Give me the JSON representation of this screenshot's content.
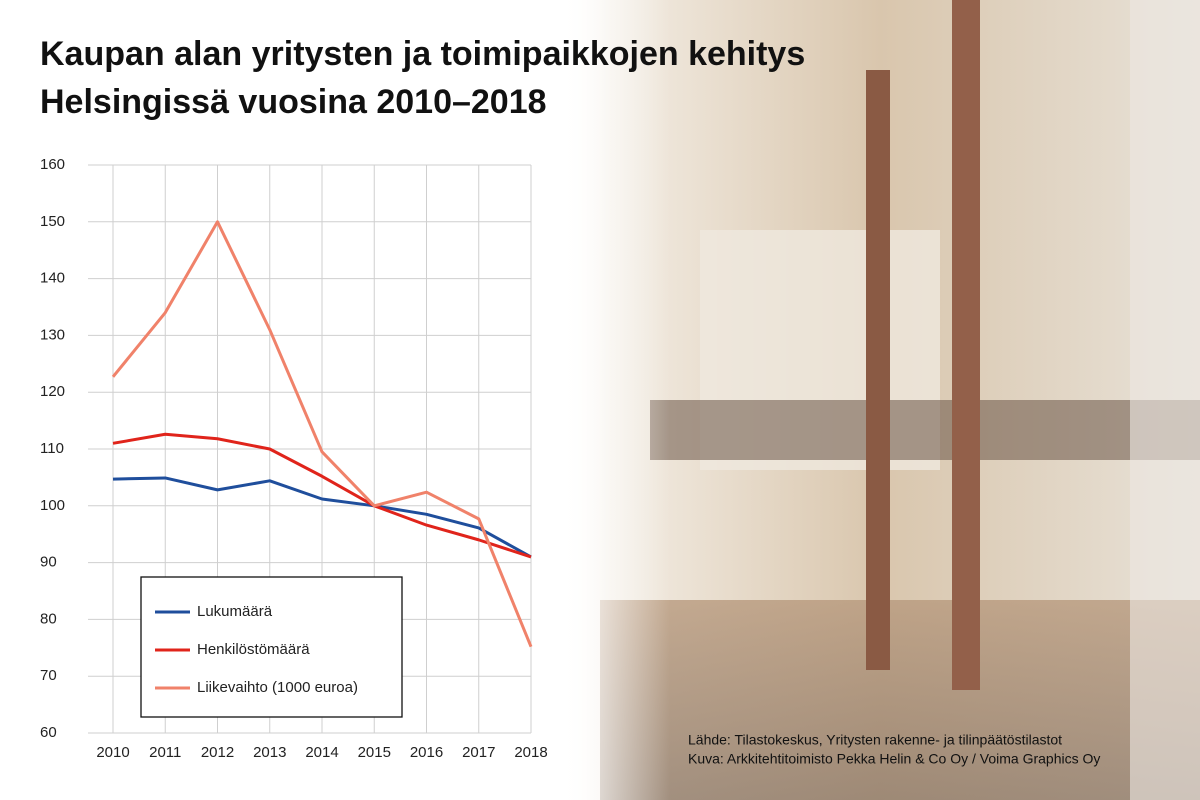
{
  "chart_data": {
    "type": "line",
    "title": [
      "Kaupan alan yritysten ja toimipaikkojen kehitys",
      "Helsingissä vuosina 2010–2018"
    ],
    "categories": [
      "2010",
      "2011",
      "2012",
      "2013",
      "2014",
      "2015",
      "2016",
      "2017",
      "2018"
    ],
    "series": [
      {
        "name": "Lukumäärä",
        "color": "#1f4e9c",
        "values": [
          104.7,
          104.9,
          102.8,
          104.4,
          101.2,
          100,
          98.5,
          96.1,
          91
        ]
      },
      {
        "name": "Henkilöstömäärä",
        "color": "#e0241b",
        "values": [
          111,
          112.6,
          111.8,
          110,
          105.2,
          100,
          96.6,
          94,
          91
        ]
      },
      {
        "name": "Liikevaihto (1000 euroa)",
        "color": "#f0826a",
        "values": [
          122.7,
          134,
          150,
          131,
          109.5,
          100,
          102.4,
          97.7,
          75.2
        ]
      }
    ],
    "ylim": [
      60,
      160
    ],
    "yticks": [
      60,
      70,
      80,
      90,
      100,
      110,
      120,
      130,
      140,
      150,
      160
    ],
    "grid": true,
    "legend": "lower left",
    "source": [
      "Lähde: Tilastokeskus, Yritysten rakenne- ja tilinpäätöstilastot",
      "Kuva: Arkkitehtitoimisto Pekka Helin & Co Oy / Voima Graphics Oy"
    ]
  }
}
